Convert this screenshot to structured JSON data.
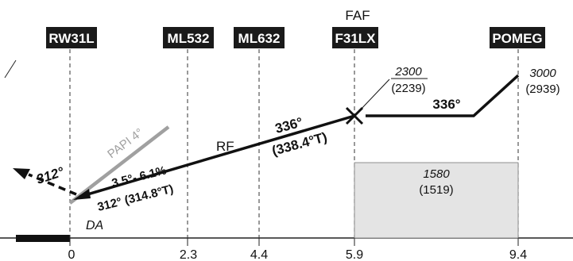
{
  "fixes": [
    {
      "id": "RW31L",
      "label": "RW31L",
      "distance": "0"
    },
    {
      "id": "ML532",
      "label": "ML532",
      "distance": "2.3"
    },
    {
      "id": "ML632",
      "label": "ML632",
      "distance": "4.4"
    },
    {
      "id": "F31LX",
      "label": "F31LX",
      "distance": "5.9",
      "role": "FAF"
    },
    {
      "id": "POMEG",
      "label": "POMEG",
      "distance": "9.4"
    }
  ],
  "faf_label": "FAF",
  "altitudes": {
    "faf": {
      "msl": "2300",
      "hat": "(2239)"
    },
    "pomeg": {
      "msl": "3000",
      "hat": "(2939)"
    },
    "box": {
      "msl": "1580",
      "hat": "(1519)"
    }
  },
  "courses": {
    "intermediate": "336°",
    "final": "336°",
    "final_true": "(338.4°T)",
    "missed": "312°",
    "glide": "312° (314.8°T)",
    "slope": "3.5°- 6.1%"
  },
  "labels": {
    "rf": "RF",
    "papi": "PAPI 4°",
    "da": "DA"
  },
  "colors": {
    "fix_box": "#1a1a1a",
    "papi": "#a0a0a0",
    "box_fill": "#e4e4e4"
  }
}
